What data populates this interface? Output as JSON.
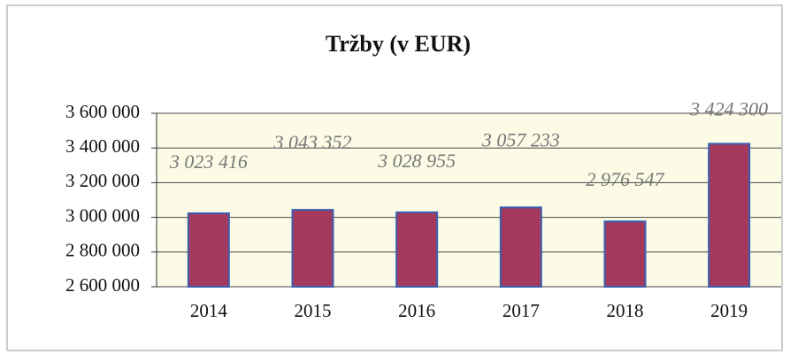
{
  "chart_data": {
    "type": "bar",
    "title": "Tržby (v EUR)",
    "categories": [
      "2014",
      "2015",
      "2016",
      "2017",
      "2018",
      "2019"
    ],
    "values": [
      3023416,
      3043352,
      3028955,
      3057233,
      2976547,
      3424300
    ],
    "value_labels": [
      "3 023 416",
      "3 043 352",
      "3 028 955",
      "3 057 233",
      "2 976 547",
      "3 424 300"
    ],
    "color": "#a33a5e",
    "ylim": [
      2600000,
      3600000
    ],
    "yticks": [
      {
        "value": 2600000,
        "label": "2 600 000"
      },
      {
        "value": 2800000,
        "label": "2 800 000"
      },
      {
        "value": 3000000,
        "label": "3 000 000"
      },
      {
        "value": 3200000,
        "label": "3 200 000"
      },
      {
        "value": 3400000,
        "label": "3 400 000"
      },
      {
        "value": 3600000,
        "label": "3 600 000"
      }
    ],
    "grid": true
  }
}
